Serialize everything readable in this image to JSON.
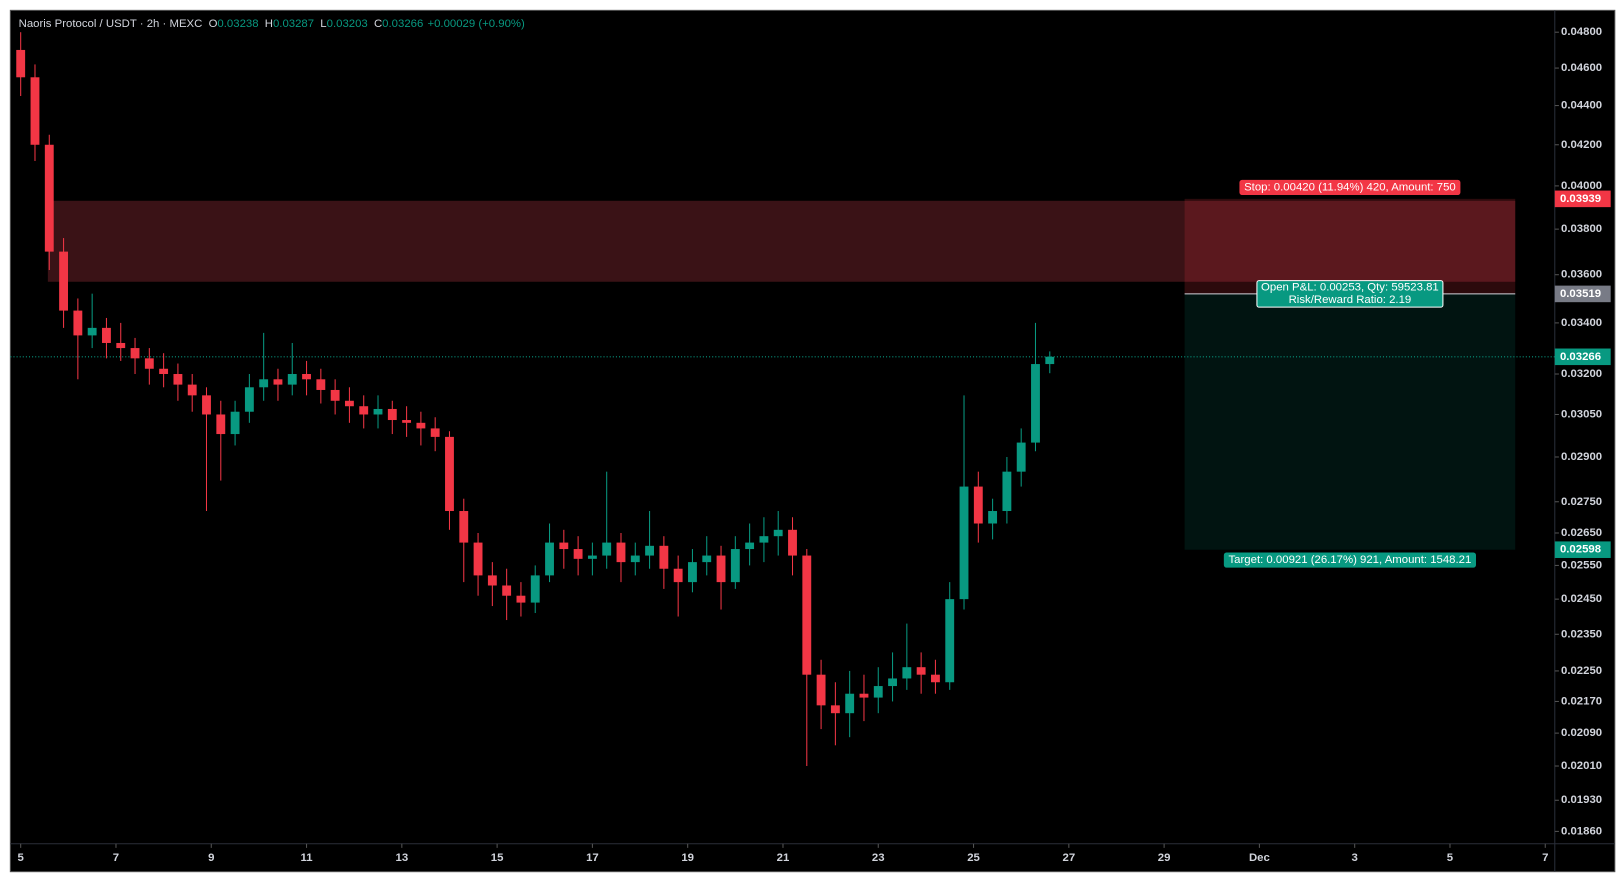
{
  "header": {
    "symbol": "Naoris Protocol / USDT · 2h · MEXC",
    "ohlc_labels": [
      "O",
      "H",
      "L",
      "C"
    ],
    "ohlc_values": [
      0.03238,
      0.03287,
      0.03203,
      0.03266
    ],
    "change": "+0.00029 (+0.90%)"
  },
  "chart_data": {
    "type": "candlestick",
    "log": true,
    "up_color": "#089981",
    "down_color": "#f23645",
    "x": [
      0,
      0.3,
      0.6,
      0.9,
      1.2,
      1.5,
      1.8,
      2.1,
      2.4,
      2.7,
      3,
      3.3,
      3.6,
      3.9,
      4.2,
      4.5,
      4.8,
      5.1,
      5.4,
      5.7,
      6,
      6.3,
      6.6,
      6.9,
      7.2,
      7.5,
      7.8,
      8.1,
      8.4,
      8.7,
      9,
      9.3,
      9.6,
      9.9,
      10.2,
      10.5,
      10.8,
      11.1,
      11.4,
      11.7,
      12,
      12.3,
      12.6,
      12.9,
      13.2,
      13.5,
      13.8,
      14.1,
      14.4,
      14.7,
      15,
      15.3,
      15.6,
      15.9,
      16.2,
      16.5,
      16.8,
      17.1,
      17.4,
      17.7,
      18,
      18.3,
      18.6,
      18.9,
      19.2,
      19.5,
      19.8,
      20.1,
      20.4,
      20.7,
      21,
      21.3,
      21.6
    ],
    "candles": [
      [
        0.047,
        0.048,
        0.0445,
        0.0455
      ],
      [
        0.0455,
        0.0462,
        0.0412,
        0.042
      ],
      [
        0.042,
        0.0425,
        0.0362,
        0.037
      ],
      [
        0.037,
        0.0376,
        0.0338,
        0.0345
      ],
      [
        0.0345,
        0.035,
        0.0318,
        0.0335
      ],
      [
        0.0335,
        0.0352,
        0.033,
        0.0338
      ],
      [
        0.0338,
        0.0342,
        0.0326,
        0.0332
      ],
      [
        0.0332,
        0.034,
        0.0325,
        0.033
      ],
      [
        0.033,
        0.0334,
        0.032,
        0.0326
      ],
      [
        0.0326,
        0.033,
        0.0316,
        0.0322
      ],
      [
        0.0322,
        0.0328,
        0.0315,
        0.032
      ],
      [
        0.032,
        0.0324,
        0.031,
        0.0316
      ],
      [
        0.0316,
        0.032,
        0.0306,
        0.0312
      ],
      [
        0.0312,
        0.0315,
        0.0272,
        0.0305
      ],
      [
        0.0305,
        0.031,
        0.0282,
        0.0298
      ],
      [
        0.0298,
        0.031,
        0.0294,
        0.0306
      ],
      [
        0.0306,
        0.032,
        0.0302,
        0.0315
      ],
      [
        0.0315,
        0.0336,
        0.031,
        0.0318
      ],
      [
        0.0318,
        0.0322,
        0.031,
        0.0316
      ],
      [
        0.0316,
        0.0332,
        0.0312,
        0.032
      ],
      [
        0.032,
        0.0325,
        0.0312,
        0.0318
      ],
      [
        0.0318,
        0.0322,
        0.0309,
        0.0314
      ],
      [
        0.0314,
        0.0318,
        0.0305,
        0.031
      ],
      [
        0.031,
        0.0315,
        0.0302,
        0.0308
      ],
      [
        0.0308,
        0.0312,
        0.03,
        0.0305
      ],
      [
        0.0305,
        0.0312,
        0.03,
        0.0307
      ],
      [
        0.0307,
        0.031,
        0.0298,
        0.0303
      ],
      [
        0.0303,
        0.0308,
        0.0297,
        0.0302
      ],
      [
        0.0302,
        0.0306,
        0.0294,
        0.03
      ],
      [
        0.03,
        0.0304,
        0.0292,
        0.0297
      ],
      [
        0.0297,
        0.0299,
        0.0266,
        0.0272
      ],
      [
        0.0272,
        0.0276,
        0.025,
        0.0262
      ],
      [
        0.0262,
        0.0265,
        0.0246,
        0.0252
      ],
      [
        0.0252,
        0.0256,
        0.0243,
        0.0249
      ],
      [
        0.0249,
        0.0254,
        0.0239,
        0.0246
      ],
      [
        0.0246,
        0.025,
        0.024,
        0.0244
      ],
      [
        0.0244,
        0.0255,
        0.0241,
        0.0252
      ],
      [
        0.0252,
        0.0268,
        0.025,
        0.0262
      ],
      [
        0.0262,
        0.0266,
        0.0254,
        0.026
      ],
      [
        0.026,
        0.0264,
        0.0252,
        0.0257
      ],
      [
        0.0257,
        0.0262,
        0.0252,
        0.0258
      ],
      [
        0.0258,
        0.0285,
        0.0254,
        0.0262
      ],
      [
        0.0262,
        0.0265,
        0.025,
        0.0256
      ],
      [
        0.0256,
        0.0262,
        0.0252,
        0.0258
      ],
      [
        0.0258,
        0.0272,
        0.0254,
        0.0261
      ],
      [
        0.0261,
        0.0264,
        0.0248,
        0.0254
      ],
      [
        0.0254,
        0.0258,
        0.024,
        0.025
      ],
      [
        0.025,
        0.026,
        0.0247,
        0.0256
      ],
      [
        0.0256,
        0.0264,
        0.0252,
        0.0258
      ],
      [
        0.0258,
        0.0261,
        0.0242,
        0.025
      ],
      [
        0.025,
        0.0264,
        0.0248,
        0.026
      ],
      [
        0.026,
        0.0268,
        0.0255,
        0.0262
      ],
      [
        0.0262,
        0.027,
        0.0256,
        0.0264
      ],
      [
        0.0264,
        0.0272,
        0.0258,
        0.0266
      ],
      [
        0.0266,
        0.027,
        0.0252,
        0.0258
      ],
      [
        0.0258,
        0.026,
        0.0201,
        0.0224
      ],
      [
        0.0224,
        0.0228,
        0.021,
        0.0216
      ],
      [
        0.0216,
        0.0222,
        0.0206,
        0.0214
      ],
      [
        0.0214,
        0.0225,
        0.0208,
        0.0219
      ],
      [
        0.0219,
        0.0224,
        0.0212,
        0.0218
      ],
      [
        0.0218,
        0.0226,
        0.0214,
        0.0221
      ],
      [
        0.0221,
        0.023,
        0.0217,
        0.0223
      ],
      [
        0.0223,
        0.0238,
        0.022,
        0.0226
      ],
      [
        0.0226,
        0.023,
        0.0219,
        0.0224
      ],
      [
        0.0224,
        0.0228,
        0.0219,
        0.0222
      ],
      [
        0.0222,
        0.025,
        0.022,
        0.0245
      ],
      [
        0.0245,
        0.0312,
        0.0242,
        0.028
      ],
      [
        0.028,
        0.0285,
        0.0262,
        0.0268
      ],
      [
        0.0268,
        0.0276,
        0.0263,
        0.0272
      ],
      [
        0.0272,
        0.029,
        0.0268,
        0.0285
      ],
      [
        0.0285,
        0.03,
        0.028,
        0.0295
      ],
      [
        0.0295,
        0.034,
        0.0292,
        0.03238
      ],
      [
        0.03238,
        0.03287,
        0.03203,
        0.03266
      ]
    ],
    "xlim": [
      -0.217,
      32.2
    ],
    "xticks": [
      {
        "value": 0,
        "label": "5"
      },
      {
        "value": 2,
        "label": "7"
      },
      {
        "value": 4,
        "label": "9"
      },
      {
        "value": 6,
        "label": "11"
      },
      {
        "value": 8,
        "label": "13"
      },
      {
        "value": 10,
        "label": "15"
      },
      {
        "value": 12,
        "label": "17"
      },
      {
        "value": 14,
        "label": "19"
      },
      {
        "value": 16,
        "label": "21"
      },
      {
        "value": 18,
        "label": "23"
      },
      {
        "value": 20,
        "label": "25"
      },
      {
        "value": 22,
        "label": "27"
      },
      {
        "value": 24,
        "label": "29"
      },
      {
        "value": 26,
        "label": "Dec"
      },
      {
        "value": 28,
        "label": "3"
      },
      {
        "value": 30,
        "label": "5"
      },
      {
        "value": 32,
        "label": "7"
      }
    ],
    "ylim": [
      0.01833,
      0.04926
    ],
    "yticks": [
      {
        "value": 0.048,
        "label": "0.04800"
      },
      {
        "value": 0.046,
        "label": "0.04600"
      },
      {
        "value": 0.044,
        "label": "0.04400"
      },
      {
        "value": 0.042,
        "label": "0.04200"
      },
      {
        "value": 0.04,
        "label": "0.04000"
      },
      {
        "value": 0.038,
        "label": "0.03800"
      },
      {
        "value": 0.036,
        "label": "0.03600"
      },
      {
        "value": 0.034,
        "label": "0.03400"
      },
      {
        "value": 0.032,
        "label": "0.03200"
      },
      {
        "value": 0.0305,
        "label": "0.03050"
      },
      {
        "value": 0.029,
        "label": "0.02900"
      },
      {
        "value": 0.0275,
        "label": "0.02750"
      },
      {
        "value": 0.0265,
        "label": "0.02650"
      },
      {
        "value": 0.0255,
        "label": "0.02550"
      },
      {
        "value": 0.0245,
        "label": "0.02450"
      },
      {
        "value": 0.0235,
        "label": "0.02350"
      },
      {
        "value": 0.0225,
        "label": "0.02250"
      },
      {
        "value": 0.0217,
        "label": "0.02170"
      },
      {
        "value": 0.0209,
        "label": "0.02090"
      },
      {
        "value": 0.0201,
        "label": "0.02010"
      },
      {
        "value": 0.0193,
        "label": "0.01930"
      },
      {
        "value": 0.0186,
        "label": "0.01860"
      }
    ],
    "last_price": 0.03266,
    "zone": {
      "top": 0.0393,
      "bottom": 0.0357,
      "x_start": 0.57,
      "x_end": 31.37,
      "color": "#3a1216"
    },
    "position": {
      "stop": 0.03939,
      "entry": 0.03519,
      "target": 0.02598,
      "x_start": 24.43,
      "x_end": 31.37,
      "stop_label": "Stop: 0.00420 (11.94%) 420, Amount: 750",
      "pnl_label": "Open P&L: 0.00253, Qty: 59523.81",
      "rr_label": "Risk/Reward Ratio: 2.19",
      "target_label": "Target: 0.00921 (26.17%) 921, Amount: 1548.21"
    }
  }
}
